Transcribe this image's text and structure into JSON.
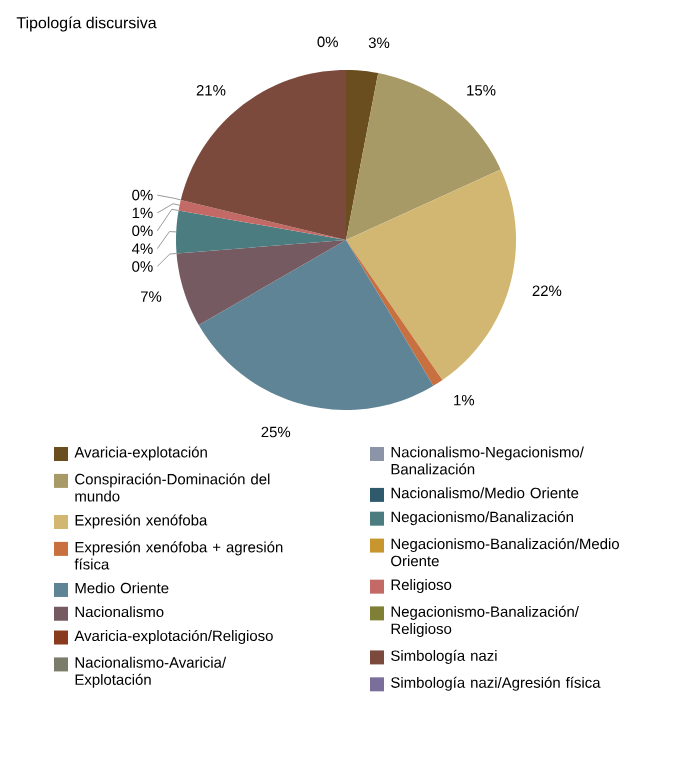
{
  "chart_data": {
    "type": "pie",
    "title": "Tipología discursiva",
    "categories": [
      "Avaricia-explotación",
      "Conspiración-Dominación del mundo",
      "Expresión xenófoba",
      "Expresión xenófoba + agresión física",
      "Medio Oriente",
      "Nacionalismo",
      "Avaricia-explotación/Religioso",
      "Nacionalismo-Avaricia/Explotación",
      "Nacionalismo-Negacionismo/Banalización",
      "Nacionalismo/Medio Oriente",
      "Negacionismo/Banalización",
      "Negacionismo-Banalización/Medio Oriente",
      "Religioso",
      "Negacionismo-Banalización/Religioso",
      "Simbología nazi",
      "Simbología nazi/Agresión física"
    ],
    "values": [
      3,
      15,
      22,
      1,
      25,
      7,
      0,
      0,
      0,
      0,
      4,
      0,
      1,
      0,
      21,
      0
    ],
    "value_labels": [
      "3%",
      "15%",
      "22%",
      "1%",
      "25%",
      "7%",
      null,
      "0%",
      null,
      null,
      "4%",
      "0%",
      "1%",
      "0%",
      "21%",
      "0%"
    ],
    "colors": [
      "#6b4e1f",
      "#a89a66",
      "#d2b772",
      "#c8703f",
      "#5f8496",
      "#765a62",
      "#8a3b1e",
      "#7b7d6a",
      "#8c95a8",
      "#2e5a6c",
      "#4b7c80",
      "#c8962e",
      "#c46a66",
      "#7f7f36",
      "#7c4a3c",
      "#7a6f9a"
    ],
    "legend": "bottom"
  }
}
